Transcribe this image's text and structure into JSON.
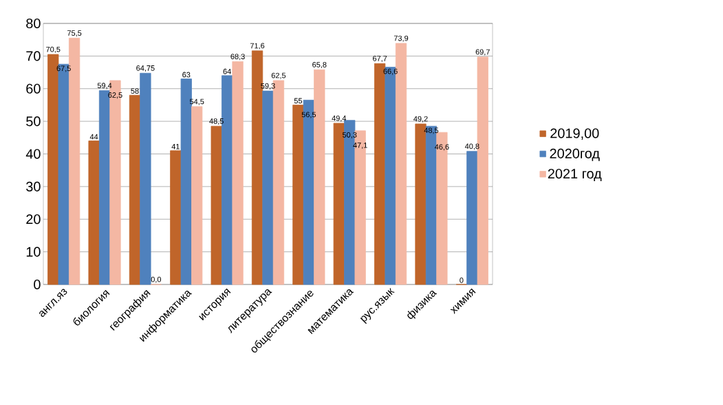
{
  "chart_data": {
    "type": "bar",
    "categories": [
      "англ.яз",
      "биология",
      "география",
      "информатика",
      "история",
      "литература",
      "обществознание",
      "математика",
      "рус.язык",
      "физика",
      "химия"
    ],
    "series": [
      {
        "name": "2019,00",
        "color": "#c0652a",
        "values": [
          70.5,
          44,
          58,
          41,
          48.5,
          71.6,
          55,
          49.4,
          67.7,
          49.2,
          0
        ],
        "value_labels": [
          "70,5",
          "44",
          "58",
          "41",
          "48,5",
          "71,6",
          "55",
          "49,4",
          "67,7",
          "49,2",
          "0"
        ]
      },
      {
        "name": "2020год",
        "color": "#4f81bd",
        "values": [
          67.5,
          59.4,
          64.75,
          63,
          64,
          59.3,
          56.5,
          50.3,
          66.6,
          48.5,
          40.8
        ],
        "value_labels": [
          "67,5",
          "59,4",
          "64,75",
          "63",
          "64",
          "59,3",
          "56,5",
          "50,3",
          "66,6",
          "48,5",
          "40,8"
        ]
      },
      {
        "name": "2021 год",
        "color": "#f4b7a3",
        "values": [
          75.5,
          62.5,
          0,
          54.5,
          68.3,
          62.5,
          65.8,
          47.1,
          73.9,
          46.6,
          69.7
        ],
        "value_labels": [
          "75,5",
          "62,5",
          "0,0",
          "54,5",
          "68,3",
          "62,5",
          "65,8",
          "47,1",
          "73,9",
          "46,6",
          "69,7"
        ]
      }
    ],
    "ylim": [
      0,
      80
    ],
    "yticks": [
      0,
      10,
      20,
      30,
      40,
      50,
      60,
      70,
      80
    ],
    "grid": "y",
    "legend": "right"
  }
}
